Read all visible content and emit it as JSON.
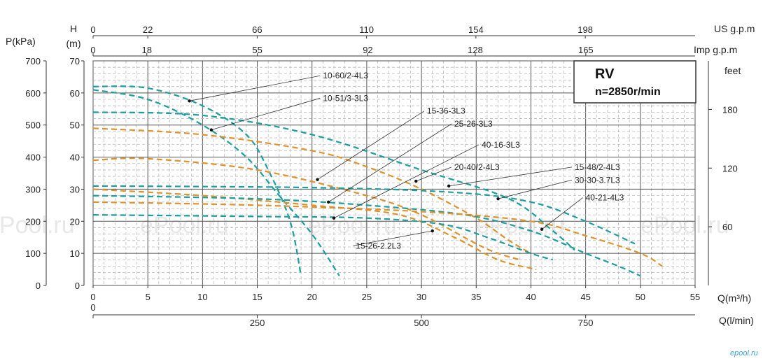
{
  "chart_data": {
    "type": "line",
    "title": "RV",
    "subtitle": "n=2850r/min",
    "x": {
      "label": "Q(m³/h)",
      "range": [
        0,
        55
      ],
      "ticks": [
        0,
        5,
        10,
        15,
        20,
        25,
        30,
        35,
        40,
        45,
        50,
        55
      ]
    },
    "y": {
      "label_top": "H",
      "label_unit": "(m)",
      "range": [
        0,
        70
      ],
      "ticks": [
        0,
        10,
        20,
        30,
        40,
        50,
        60,
        70
      ]
    },
    "y_pressure": {
      "label": "P(kPa)",
      "ticks": [
        0,
        100,
        200,
        300,
        400,
        500,
        600,
        700
      ]
    },
    "y_feet": {
      "label": "feet",
      "ticks": [
        60,
        120,
        180
      ]
    },
    "x_us": {
      "label": "US g.p.m",
      "ticks": [
        0,
        22,
        66,
        110,
        154,
        198
      ]
    },
    "x_imp": {
      "label": "Imp g.p.m",
      "ticks": [
        0,
        18,
        55,
        92,
        128,
        165
      ]
    },
    "x_lmin": {
      "label": "Q(l/min)",
      "ticks": [
        0,
        250,
        500,
        750
      ]
    },
    "grid": true,
    "colors": {
      "teal": "#1a9e9e",
      "orange": "#e0922a",
      "grid": "#333333"
    },
    "series": [
      {
        "name": "10-60/2-4L3",
        "color": "teal",
        "points": [
          [
            0,
            62
          ],
          [
            5,
            61.5
          ],
          [
            10,
            56
          ],
          [
            14,
            47
          ],
          [
            16,
            36
          ],
          [
            18,
            20
          ],
          [
            19,
            3
          ]
        ]
      },
      {
        "name": "10-51/3-3L3",
        "color": "teal",
        "points": [
          [
            0,
            61
          ],
          [
            5,
            58
          ],
          [
            10,
            50
          ],
          [
            14,
            40
          ],
          [
            17,
            28
          ],
          [
            20,
            16
          ],
          [
            22.5,
            3
          ]
        ]
      },
      {
        "name": "15-36-3L3",
        "color": "teal",
        "points": [
          [
            0,
            54
          ],
          [
            10,
            53
          ],
          [
            20,
            47
          ],
          [
            30,
            36
          ],
          [
            38,
            27
          ],
          [
            42,
            17
          ],
          [
            44,
            11
          ]
        ]
      },
      {
        "name": "25-26-3L3",
        "color": "orange",
        "points": [
          [
            0,
            49
          ],
          [
            10,
            47
          ],
          [
            20,
            42
          ],
          [
            25,
            37
          ],
          [
            30,
            30
          ],
          [
            35,
            21
          ],
          [
            38,
            14
          ],
          [
            40,
            10
          ]
        ]
      },
      {
        "name": "40-16-3L3",
        "color": "orange",
        "points": [
          [
            0,
            39
          ],
          [
            5,
            39.5
          ],
          [
            15,
            36
          ],
          [
            25,
            28
          ],
          [
            30,
            22
          ],
          [
            35,
            13
          ],
          [
            37,
            10
          ],
          [
            39,
            8
          ]
        ]
      },
      {
        "name": "20-40/2-4L3",
        "color": "orange",
        "points": [
          [
            0,
            30
          ],
          [
            10,
            28
          ],
          [
            20,
            25
          ],
          [
            28,
            22
          ],
          [
            33,
            15
          ],
          [
            37,
            8
          ],
          [
            40.5,
            5
          ]
        ]
      },
      {
        "name": "15-48/2-4L3",
        "color": "teal",
        "points": [
          [
            0,
            31
          ],
          [
            20,
            30.5
          ],
          [
            33,
            29
          ],
          [
            40,
            26
          ],
          [
            45,
            20
          ],
          [
            49.5,
            13
          ]
        ]
      },
      {
        "name": "30-30-3.7L3",
        "color": "teal",
        "points": [
          [
            0,
            28
          ],
          [
            15,
            27
          ],
          [
            25,
            25
          ],
          [
            34,
            22
          ],
          [
            40,
            17
          ],
          [
            45,
            10
          ],
          [
            48,
            6
          ],
          [
            50,
            3
          ]
        ]
      },
      {
        "name": "40-21-4L3",
        "color": "orange",
        "points": [
          [
            0,
            26
          ],
          [
            15,
            25
          ],
          [
            30,
            23
          ],
          [
            40,
            20
          ],
          [
            45,
            15.5
          ],
          [
            50,
            10
          ],
          [
            52,
            6
          ]
        ]
      },
      {
        "name": "15-26-2.2L3",
        "color": "teal",
        "points": [
          [
            0,
            22
          ],
          [
            15,
            21.5
          ],
          [
            25,
            21
          ],
          [
            32,
            19
          ],
          [
            36,
            15
          ],
          [
            40,
            10
          ],
          [
            42,
            8
          ]
        ]
      }
    ],
    "annotations": [
      {
        "text": "10-60/2-4L3",
        "label_pos": [
          21,
          64.5
        ],
        "target": [
          8.8,
          57.5
        ]
      },
      {
        "text": "10-51/3-3L3",
        "label_pos": [
          21,
          57.5
        ],
        "target": [
          10.8,
          48.5
        ]
      },
      {
        "text": "15-36-3L3",
        "label_pos": [
          30.5,
          53.5
        ],
        "target": [
          20.5,
          33
        ]
      },
      {
        "text": "25-26-3L3",
        "label_pos": [
          33,
          49.5
        ],
        "target": [
          21.5,
          26
        ]
      },
      {
        "text": "40-16-3L3",
        "label_pos": [
          35.5,
          43
        ],
        "target": [
          22,
          21
        ]
      },
      {
        "text": "20-40/2-4L3",
        "label_pos": [
          33,
          36
        ],
        "target": [
          29.5,
          32.5
        ]
      },
      {
        "text": "15-48/2-4L3",
        "label_pos": [
          44,
          36
        ],
        "target": [
          32.5,
          31
        ]
      },
      {
        "text": "30-30-3.7L3",
        "label_pos": [
          44,
          32
        ],
        "target": [
          37,
          27
        ]
      },
      {
        "text": "40-21-4L3",
        "label_pos": [
          45,
          26.5
        ],
        "target": [
          41,
          17.5
        ]
      },
      {
        "text": "15-26-2.2L3",
        "label_pos": [
          24,
          11.5
        ],
        "target": [
          31,
          17
        ]
      }
    ]
  },
  "watermarks": [
    "ePool.ru",
    "ePool.ru",
    "ePool.ru",
    "ePool.ru",
    "ePool.ru"
  ],
  "site_mark": "epool.ru"
}
